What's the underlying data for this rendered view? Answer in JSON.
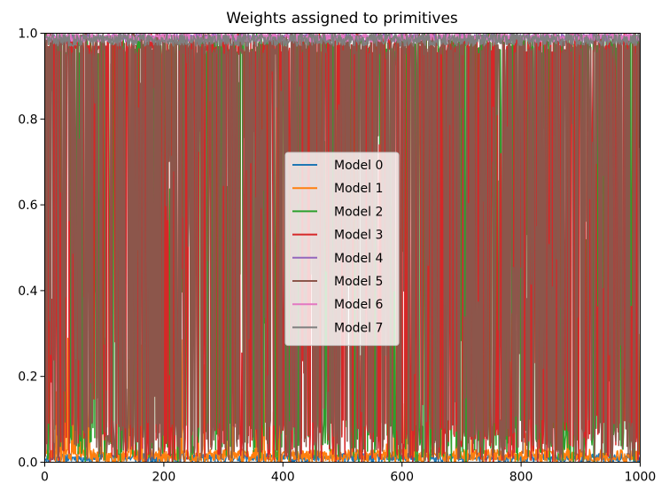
{
  "chart_data": {
    "type": "line",
    "title": "Weights assigned to primitives",
    "xlabel": "",
    "ylabel": "",
    "xlim": [
      0,
      1000
    ],
    "ylim": [
      0,
      1
    ],
    "x_ticks": [
      0,
      200,
      400,
      600,
      800,
      1000
    ],
    "x_tick_labels": [
      "0",
      "200",
      "400",
      "600",
      "800",
      "1000"
    ],
    "y_ticks": [
      0.0,
      0.2,
      0.4,
      0.6,
      0.8,
      1.0
    ],
    "y_tick_labels": [
      "0.0",
      "0.2",
      "0.4",
      "0.6",
      "0.8",
      "1.0"
    ],
    "grid": false,
    "legend_position": "center",
    "series": [
      {
        "name": "Model 0",
        "color": "#1f77b4",
        "low": 0.0,
        "high": 0.02,
        "mean": 0.01,
        "noise": 0.01,
        "seed": 11
      },
      {
        "name": "Model 1",
        "color": "#ff7f0e",
        "low": 0.0,
        "high": 0.3,
        "mean": 0.02,
        "noise": 0.03,
        "spike_rate": 0.08,
        "seed": 23
      },
      {
        "name": "Model 2",
        "color": "#2ca02c",
        "low": 0.0,
        "high": 1.0,
        "mean": 0.55,
        "noise": 0.45,
        "seed": 37
      },
      {
        "name": "Model 3",
        "color": "#d62728",
        "low": 0.0,
        "high": 1.0,
        "mean": 0.6,
        "noise": 0.45,
        "seed": 41
      },
      {
        "name": "Model 4",
        "color": "#9467bd",
        "low": 0.95,
        "high": 1.0,
        "mean": 0.99,
        "noise": 0.01,
        "seed": 53
      },
      {
        "name": "Model 5",
        "color": "#8c564b",
        "low": 0.0,
        "high": 1.0,
        "mean": 0.55,
        "noise": 0.45,
        "seed": 67
      },
      {
        "name": "Model 6",
        "color": "#e377c2",
        "low": 0.95,
        "high": 1.0,
        "mean": 0.99,
        "noise": 0.01,
        "seed": 71
      },
      {
        "name": "Model 7",
        "color": "#7f7f7f",
        "low": 0.95,
        "high": 1.0,
        "mean": 0.985,
        "noise": 0.015,
        "seed": 83
      }
    ]
  }
}
